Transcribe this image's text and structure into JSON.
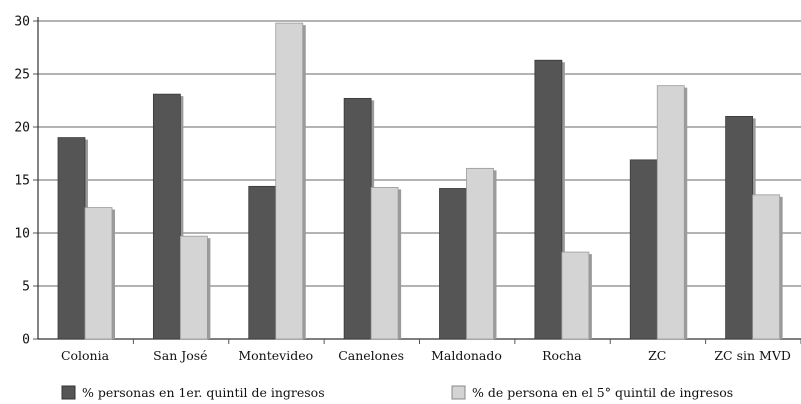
{
  "chart_data": {
    "type": "bar",
    "categories": [
      "Colonia",
      "San José",
      "Montevideo",
      "Canelones",
      "Maldonado",
      "Rocha",
      "ZC",
      "ZC sin MVD"
    ],
    "series": [
      {
        "name": "% personas en 1er. quintil de ingresos",
        "color": "#555555",
        "values": [
          19.0,
          23.1,
          14.4,
          22.7,
          14.2,
          26.3,
          16.9,
          21.0
        ]
      },
      {
        "name": "% de persona en el 5° quintil de ingresos",
        "color": "#d4d4d4",
        "values": [
          12.4,
          9.7,
          29.8,
          14.3,
          16.1,
          8.2,
          23.9,
          13.6
        ]
      }
    ],
    "ylim": [
      0,
      30
    ],
    "yticks": [
      0,
      5,
      10,
      15,
      20,
      25,
      30
    ],
    "grid": true,
    "legend_position": "bottom",
    "title": "",
    "xlabel": "",
    "ylabel": ""
  }
}
